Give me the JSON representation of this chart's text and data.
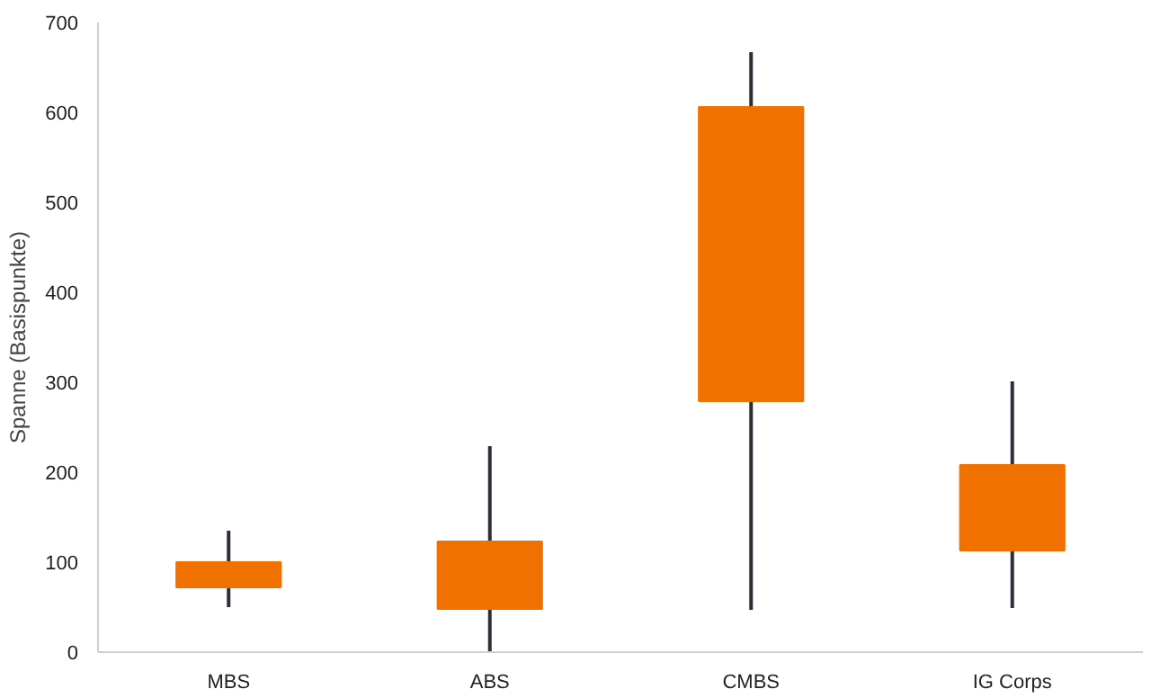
{
  "chart_data": {
    "type": "candlestick",
    "ylabel": "Spanne (Basispunkte)",
    "categories": [
      "MBS",
      "ABS",
      "CMBS",
      "IG Corps"
    ],
    "ohlc": [
      [
        72,
        135,
        50,
        100
      ],
      [
        48,
        229,
        0,
        123
      ],
      [
        279,
        667,
        47,
        606
      ],
      [
        113,
        301,
        49,
        208
      ]
    ],
    "color": "#f07000",
    "ylim": [
      0,
      700
    ],
    "yticks": [
      0,
      100,
      200,
      300,
      400,
      500,
      600,
      700
    ],
    "grid": false
  }
}
